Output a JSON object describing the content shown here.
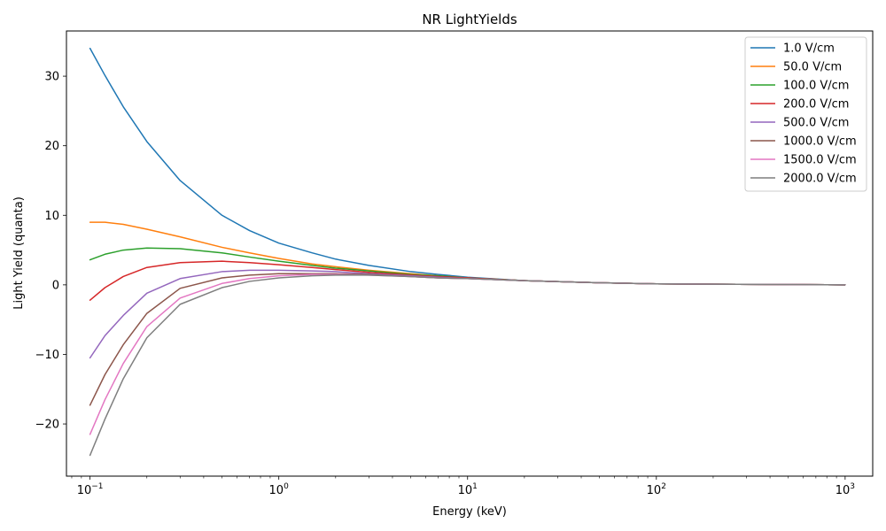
{
  "chart_data": {
    "type": "line",
    "title": "NR LightYields",
    "xlabel": "Energy (keV)",
    "ylabel": "Light Yield (quanta)",
    "xscale": "log",
    "xlim": [
      0.075,
      1400
    ],
    "ylim": [
      -27.5,
      36.5
    ],
    "x_ticks": [
      0.1,
      1,
      10,
      100,
      1000
    ],
    "x_tick_labels": [
      {
        "base": "10",
        "exp": "−1"
      },
      {
        "base": "10",
        "exp": "0"
      },
      {
        "base": "10",
        "exp": "1"
      },
      {
        "base": "10",
        "exp": "2"
      },
      {
        "base": "10",
        "exp": "3"
      }
    ],
    "y_ticks": [
      -20,
      -10,
      0,
      10,
      20,
      30
    ],
    "y_tick_labels": [
      "−20",
      "−10",
      "0",
      "10",
      "20",
      "30"
    ],
    "grid": false,
    "legend_position": "top-right",
    "x": [
      0.1,
      0.12,
      0.15,
      0.2,
      0.3,
      0.5,
      0.7,
      1,
      1.5,
      2,
      3,
      5,
      7,
      10,
      20,
      50,
      100,
      200,
      500,
      1000
    ],
    "series": [
      {
        "name": "1.0 V/cm",
        "color": "#1f77b4",
        "values": [
          34.0,
          30.1,
          25.6,
          20.6,
          15.0,
          10.0,
          7.8,
          6.0,
          4.6,
          3.7,
          2.8,
          1.9,
          1.5,
          1.1,
          0.6,
          0.3,
          0.15,
          0.1,
          0.05,
          0.0
        ]
      },
      {
        "name": "50.0 V/cm",
        "color": "#ff7f0e",
        "values": [
          9.0,
          9.0,
          8.7,
          8.0,
          6.9,
          5.4,
          4.6,
          3.8,
          3.0,
          2.6,
          2.1,
          1.6,
          1.3,
          1.0,
          0.6,
          0.3,
          0.15,
          0.1,
          0.05,
          0.0
        ]
      },
      {
        "name": "100.0 V/cm",
        "color": "#2ca02c",
        "values": [
          3.6,
          4.4,
          5.0,
          5.3,
          5.2,
          4.6,
          4.0,
          3.4,
          2.8,
          2.4,
          2.0,
          1.5,
          1.3,
          1.0,
          0.6,
          0.3,
          0.15,
          0.1,
          0.05,
          0.0
        ]
      },
      {
        "name": "200.0 V/cm",
        "color": "#d62728",
        "values": [
          -2.2,
          -0.4,
          1.2,
          2.5,
          3.2,
          3.4,
          3.2,
          2.9,
          2.5,
          2.2,
          1.8,
          1.4,
          1.2,
          1.0,
          0.6,
          0.3,
          0.15,
          0.1,
          0.05,
          0.0
        ]
      },
      {
        "name": "500.0 V/cm",
        "color": "#9467bd",
        "values": [
          -10.5,
          -7.3,
          -4.4,
          -1.2,
          0.9,
          1.9,
          2.1,
          2.1,
          2.0,
          1.9,
          1.6,
          1.3,
          1.1,
          0.9,
          0.6,
          0.3,
          0.15,
          0.1,
          0.05,
          0.0
        ]
      },
      {
        "name": "1000.0 V/cm",
        "color": "#8c564b",
        "values": [
          -17.3,
          -12.9,
          -8.6,
          -4.1,
          -0.5,
          1.0,
          1.4,
          1.6,
          1.6,
          1.6,
          1.5,
          1.2,
          1.0,
          0.9,
          0.6,
          0.3,
          0.15,
          0.1,
          0.05,
          0.0
        ]
      },
      {
        "name": "1500.0 V/cm",
        "color": "#e377c2",
        "values": [
          -21.5,
          -16.5,
          -11.3,
          -6.0,
          -1.9,
          0.2,
          0.9,
          1.3,
          1.5,
          1.5,
          1.4,
          1.2,
          1.0,
          0.9,
          0.6,
          0.3,
          0.15,
          0.1,
          0.05,
          0.0
        ]
      },
      {
        "name": "2000.0 V/cm",
        "color": "#7f7f7f",
        "values": [
          -24.5,
          -19.3,
          -13.5,
          -7.6,
          -2.8,
          -0.4,
          0.5,
          1.0,
          1.3,
          1.4,
          1.4,
          1.2,
          1.0,
          0.9,
          0.6,
          0.3,
          0.15,
          0.1,
          0.05,
          0.0
        ]
      }
    ]
  }
}
